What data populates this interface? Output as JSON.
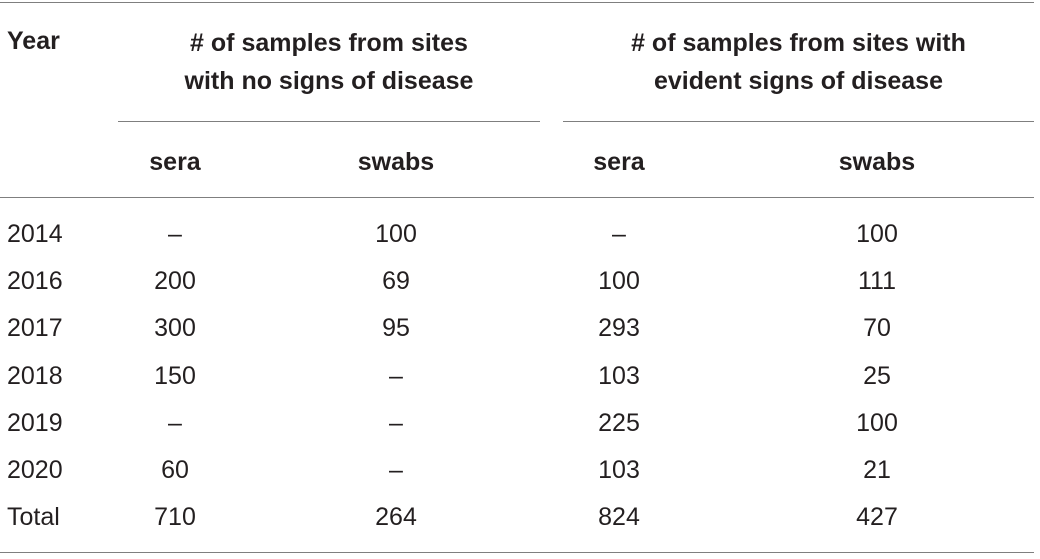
{
  "table": {
    "year_header": "Year",
    "group_no_signs": {
      "line1": "# of samples from sites",
      "line2": "with no signs of disease"
    },
    "group_evident_signs": {
      "line1": "# of samples from sites with",
      "line2": "evident signs of disease"
    },
    "subheaders": [
      "sera",
      "swabs",
      "sera",
      "swabs"
    ],
    "rows": [
      {
        "year": "2014",
        "values": [
          "–",
          "100",
          "–",
          "100"
        ]
      },
      {
        "year": "2016",
        "values": [
          "200",
          "69",
          "100",
          "111"
        ]
      },
      {
        "year": "2017",
        "values": [
          "300",
          "95",
          "293",
          "70"
        ]
      },
      {
        "year": "2018",
        "values": [
          "150",
          "–",
          "103",
          "25"
        ]
      },
      {
        "year": "2019",
        "values": [
          "–",
          "–",
          "225",
          "100"
        ]
      },
      {
        "year": "2020",
        "values": [
          "60",
          "–",
          "103",
          "21"
        ]
      },
      {
        "year": "Total",
        "values": [
          "710",
          "264",
          "824",
          "427"
        ]
      }
    ]
  }
}
